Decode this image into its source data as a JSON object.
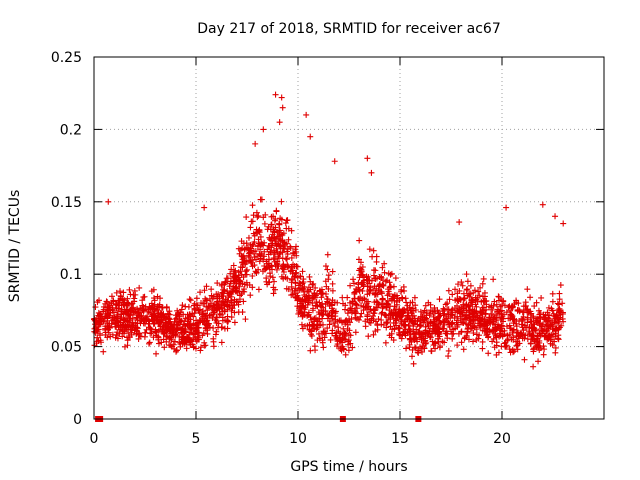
{
  "colors": {
    "series": "#e00000",
    "grid": "#a0a0a0",
    "axis": "#000000",
    "background": "#ffffff"
  },
  "chart_data": {
    "type": "scatter",
    "title": "Day 217 of 2018, SRMTID for receiver ac67",
    "xlabel": "GPS time / hours",
    "ylabel": "SRMTID / TECUs",
    "xlim": [
      0,
      25
    ],
    "ylim": [
      0,
      0.25
    ],
    "xticks": [
      0,
      5,
      10,
      15,
      20
    ],
    "xtick_labels": [
      "0",
      "5",
      "10",
      "15",
      "20"
    ],
    "yticks": [
      0,
      0.05,
      0.1,
      0.15,
      0.2,
      0.25
    ],
    "ytick_labels": [
      "0",
      "0.05",
      "0.1",
      "0.15",
      "0.2",
      "0.25"
    ],
    "grid": true,
    "legend": "none",
    "marker": "plus",
    "series": [
      {
        "name": "SRMTID",
        "profile": {
          "x": [
            0.0,
            1.0,
            2.0,
            3.0,
            4.0,
            5.0,
            6.0,
            6.8,
            7.5,
            8.0,
            8.5,
            9.0,
            9.5,
            10.0,
            10.5,
            11.0,
            11.5,
            12.0,
            12.5,
            13.0,
            14.0,
            15.0,
            16.0,
            17.0,
            18.0,
            19.0,
            20.0,
            21.0,
            22.0,
            23.0
          ],
          "typical": [
            0.065,
            0.07,
            0.072,
            0.07,
            0.06,
            0.065,
            0.075,
            0.085,
            0.11,
            0.12,
            0.11,
            0.12,
            0.115,
            0.09,
            0.075,
            0.07,
            0.085,
            0.06,
            0.065,
            0.09,
            0.085,
            0.07,
            0.06,
            0.065,
            0.075,
            0.07,
            0.065,
            0.065,
            0.06,
            0.075
          ],
          "spread": [
            0.02,
            0.025,
            0.025,
            0.025,
            0.02,
            0.025,
            0.03,
            0.03,
            0.04,
            0.04,
            0.045,
            0.045,
            0.04,
            0.035,
            0.03,
            0.03,
            0.035,
            0.03,
            0.03,
            0.035,
            0.035,
            0.03,
            0.025,
            0.025,
            0.03,
            0.03,
            0.03,
            0.03,
            0.028,
            0.025
          ]
        },
        "peaks": [
          {
            "x": 8.9,
            "y": 0.224
          },
          {
            "x": 9.2,
            "y": 0.222
          },
          {
            "x": 9.25,
            "y": 0.215
          },
          {
            "x": 10.4,
            "y": 0.21
          },
          {
            "x": 9.1,
            "y": 0.205
          },
          {
            "x": 8.3,
            "y": 0.2
          },
          {
            "x": 10.6,
            "y": 0.195
          },
          {
            "x": 7.9,
            "y": 0.19
          },
          {
            "x": 13.4,
            "y": 0.18
          },
          {
            "x": 11.8,
            "y": 0.178
          },
          {
            "x": 13.6,
            "y": 0.17
          },
          {
            "x": 22.0,
            "y": 0.148
          },
          {
            "x": 20.2,
            "y": 0.146
          },
          {
            "x": 5.4,
            "y": 0.146
          },
          {
            "x": 0.7,
            "y": 0.15
          },
          {
            "x": 22.6,
            "y": 0.14
          },
          {
            "x": 17.9,
            "y": 0.136
          },
          {
            "x": 23.0,
            "y": 0.135
          }
        ],
        "zero_markers": [
          0.2,
          0.3,
          12.2,
          15.9
        ]
      }
    ]
  }
}
